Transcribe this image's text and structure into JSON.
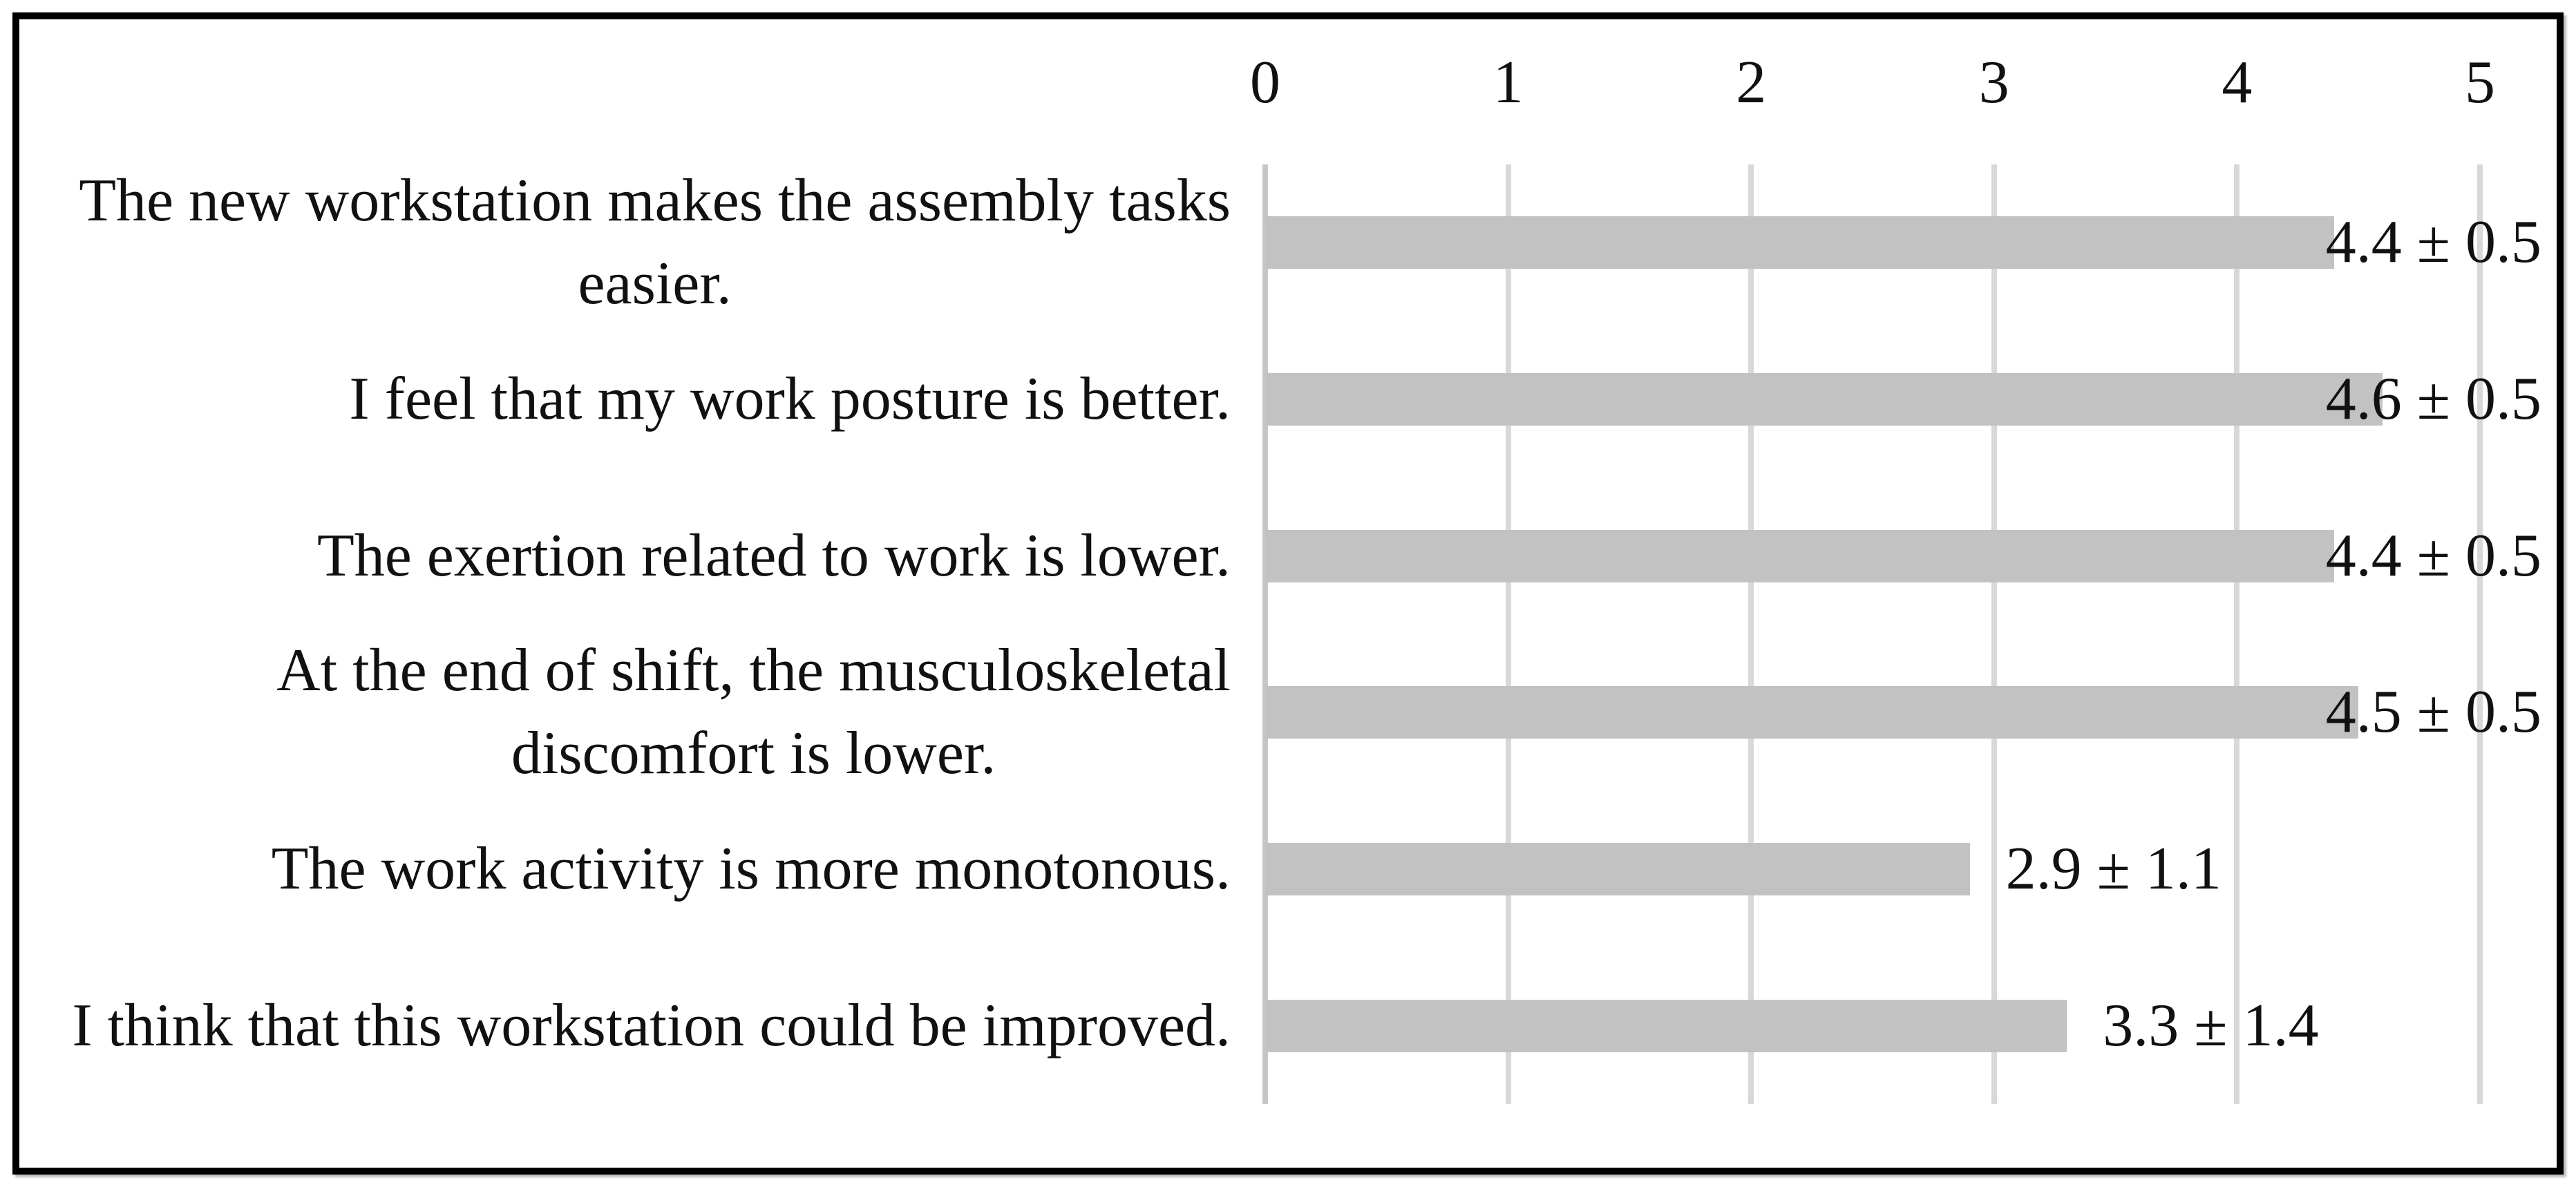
{
  "chart_data": {
    "type": "bar",
    "orientation": "horizontal",
    "title": "",
    "xlabel": "",
    "ylabel": "",
    "xlim": [
      0,
      5
    ],
    "x_ticks": [
      "0",
      "1",
      "2",
      "3",
      "4",
      "5"
    ],
    "grid": true,
    "legend": false,
    "categories": [
      "The new workstation makes the assembly tasks\neasier.",
      "I feel that my work posture is better.",
      "The exertion related to work is lower.",
      "At the end of shift, the musculoskeletal\ndiscomfort is lower.",
      "The work activity is more monotonous.",
      "I think that this workstation could be improved."
    ],
    "values": [
      4.4,
      4.6,
      4.4,
      4.5,
      2.9,
      3.3
    ],
    "std_dev": [
      0.5,
      0.5,
      0.5,
      0.5,
      1.1,
      1.4
    ],
    "value_labels": [
      "4.4 ± 0.5",
      "4.6 ± 0.5",
      "4.4 ± 0.5",
      "4.5 ± 0.5",
      "2.9 ± 1.1",
      "3.3 ± 1.4"
    ],
    "colors": {
      "bar": "#c2c2c2",
      "gridline": "#d8d8d8",
      "zero_line": "#c6c6c6",
      "text": "#111111",
      "frame": "#000000",
      "background": "#ffffff"
    }
  }
}
